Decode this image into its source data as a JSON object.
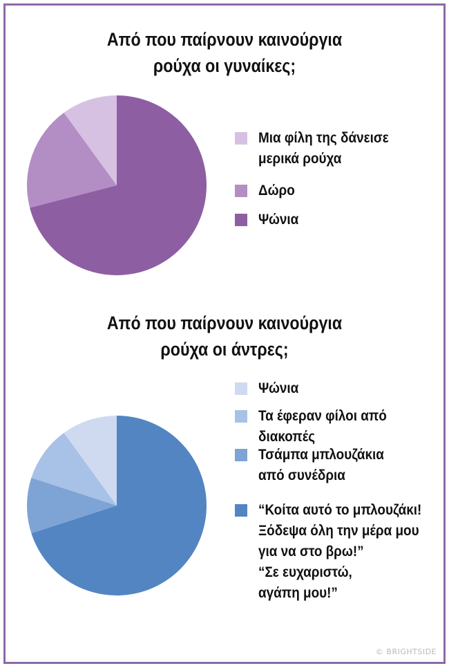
{
  "chart_data": [
    {
      "type": "pie",
      "title": [
        "Από που παίρνουν καινούργια",
        "ρούχα οι γυναίκες;"
      ],
      "start_angle_deg": 0,
      "direction": "clockwise",
      "legend_position": "right",
      "slices": [
        {
          "label": [
            "Ψώνια"
          ],
          "value": 71,
          "color": "#8e5ea2"
        },
        {
          "label": [
            "Δώρο"
          ],
          "value": 19,
          "color": "#b28ec5"
        },
        {
          "label": [
            "Μια φίλη της δάνεισε",
            "μερικά ρούχα"
          ],
          "value": 10,
          "color": "#d6c1e3"
        }
      ],
      "legend_order": [
        2,
        1,
        0
      ]
    },
    {
      "type": "pie",
      "title": [
        "Από που παίρνουν καινούργια",
        "ρούχα οι άντρες;"
      ],
      "start_angle_deg": 0,
      "direction": "clockwise",
      "legend_position": "right",
      "slices": [
        {
          "label": [
            "“Κοίτα αυτό το μπλουζάκι!",
            "Ξόδεψα όλη την μέρα μου",
            "για να στο βρω!”",
            "“Σε ευχαριστώ,",
            "αγάπη μου!”"
          ],
          "value": 70,
          "color": "#5285c2"
        },
        {
          "label": [
            "Τσάμπα μπλουζάκια",
            "από συνέδρια"
          ],
          "value": 10,
          "color": "#7ea3d5"
        },
        {
          "label": [
            "Τα έφεραν φίλοι από",
            "διακοπές"
          ],
          "value": 10,
          "color": "#a8c1e7"
        },
        {
          "label": [
            "Ψώνια"
          ],
          "value": 10,
          "color": "#cfdaf0"
        }
      ],
      "legend_order": [
        3,
        2,
        1,
        0
      ]
    }
  ],
  "credit": "© BRIGHTSIDE"
}
